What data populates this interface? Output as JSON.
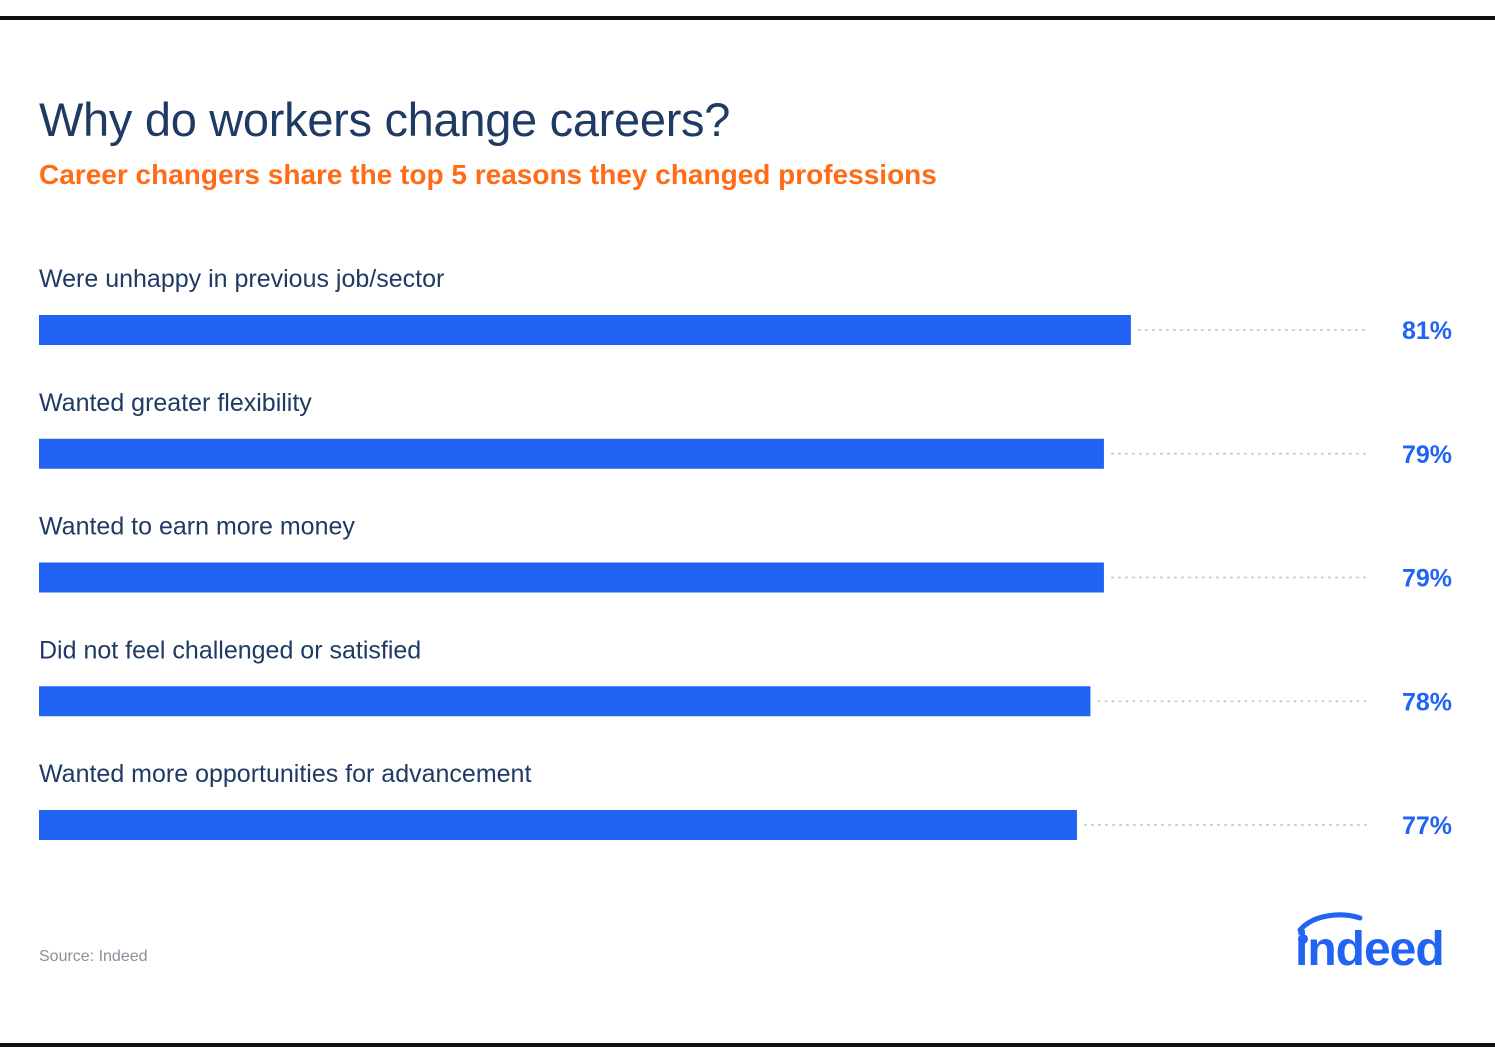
{
  "header": {
    "title": "Why do workers change careers?",
    "subtitle": "Career changers share the top 5 reasons they changed professions"
  },
  "chart_data": {
    "type": "bar",
    "orientation": "horizontal",
    "title": "Why do workers change careers?",
    "subtitle": "Career changers share the top 5 reasons they changed professions",
    "categories": [
      "Were unhappy in previous job/sector",
      "Wanted greater flexibility",
      "Wanted to earn more money",
      "Did not feel challenged or satisfied",
      "Wanted more opportunities for advancement"
    ],
    "values": [
      81,
      79,
      79,
      78,
      77
    ],
    "value_labels": [
      "81%",
      "79%",
      "79%",
      "78%",
      "77%"
    ],
    "unit": "%",
    "xlim": [
      0,
      100
    ],
    "grid": false,
    "legend": "none",
    "colors": {
      "bar": "#2164f3",
      "label": "#1f3a63",
      "value": "#2164f3",
      "dots": "#c9ccd3"
    }
  },
  "footer": {
    "source": "Source: Indeed",
    "logo_text": "indeed"
  },
  "colors": {
    "title": "#1f3a63",
    "subtitle": "#ff6b17",
    "brand": "#2164f3"
  }
}
